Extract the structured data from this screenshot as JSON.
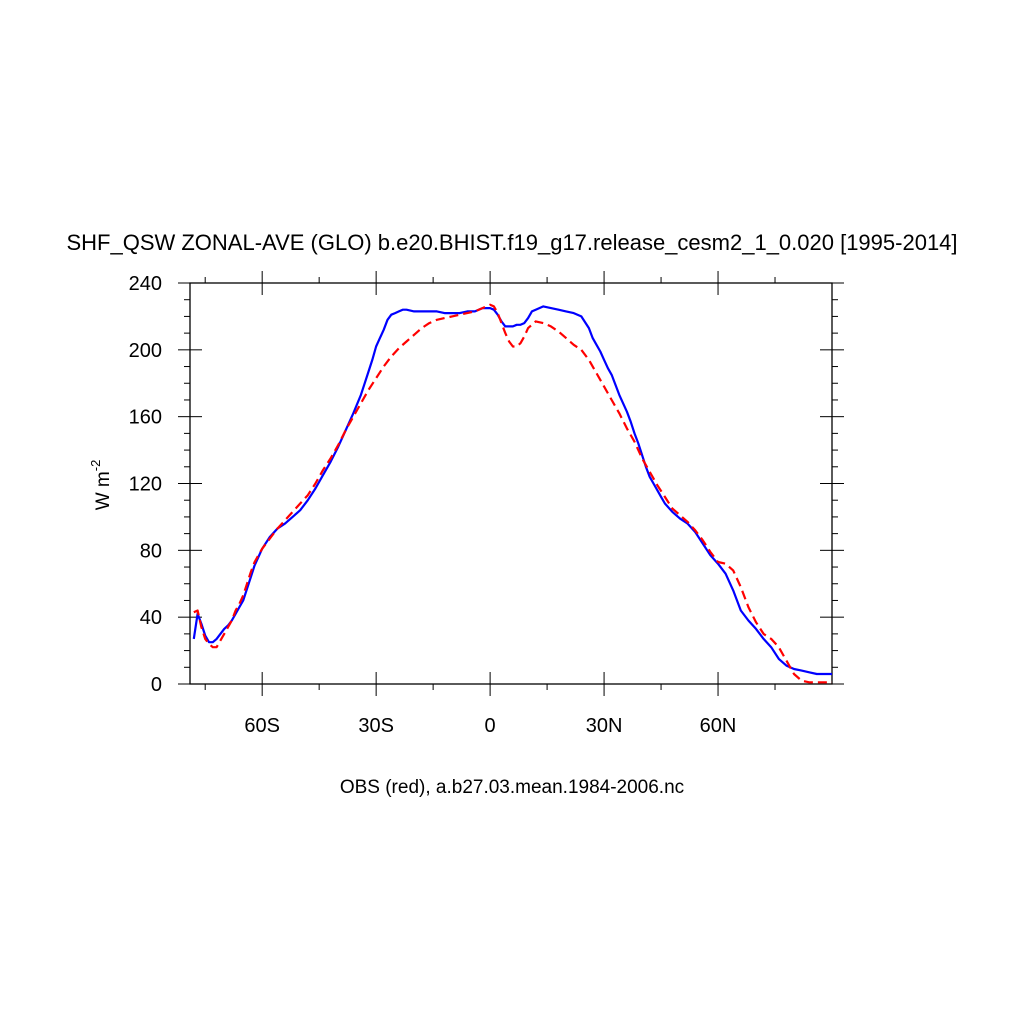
{
  "chart_data": {
    "type": "line",
    "title": "SHF_QSW ZONAL-AVE (GLO) b.e20.BHIST.f19_g17.release_cesm2_1_0.020 [1995-2014]",
    "ylabel_main": "W m",
    "ylabel_sup": "-2",
    "xlabel": "",
    "caption": "OBS (red), a.b27.03.mean.1984-2006.nc",
    "xlim": [
      -79,
      90
    ],
    "ylim": [
      0,
      240
    ],
    "x_ticks": [
      {
        "value": -60,
        "label": "60S"
      },
      {
        "value": -30,
        "label": "30S"
      },
      {
        "value": 0,
        "label": "0"
      },
      {
        "value": 30,
        "label": "30N"
      },
      {
        "value": 60,
        "label": "60N"
      }
    ],
    "y_ticks": [
      {
        "value": 0,
        "label": "0"
      },
      {
        "value": 40,
        "label": "40"
      },
      {
        "value": 80,
        "label": "80"
      },
      {
        "value": 120,
        "label": "120"
      },
      {
        "value": 160,
        "label": "160"
      },
      {
        "value": 200,
        "label": "200"
      },
      {
        "value": 240,
        "label": "240"
      }
    ],
    "grid": false,
    "series": [
      {
        "color": "#0000ff",
        "dash": "solid",
        "x": [
          -78,
          -77,
          -76,
          -75,
          -74,
          -73,
          -72,
          -71,
          -70,
          -69,
          -68,
          -67,
          -66,
          -65,
          -64,
          -63,
          -62,
          -61,
          -60,
          -58,
          -56,
          -54,
          -52,
          -50,
          -48,
          -46,
          -44,
          -42,
          -40,
          -38,
          -36,
          -34,
          -33,
          -32,
          -31,
          -30,
          -29,
          -28,
          -27,
          -26,
          -25,
          -24,
          -23,
          -22,
          -20,
          -18,
          -16,
          -14,
          -12,
          -10,
          -8,
          -6,
          -4,
          -2,
          0,
          1,
          2,
          3,
          4,
          5,
          6,
          7,
          8,
          9,
          10,
          11,
          12,
          14,
          16,
          18,
          20,
          22,
          24,
          26,
          27,
          28,
          29,
          30,
          31,
          32,
          33,
          34,
          35,
          36,
          37,
          38,
          39,
          40,
          41,
          42,
          43,
          44,
          45,
          46,
          48,
          50,
          52,
          54,
          56,
          58,
          60,
          62,
          64,
          66,
          68,
          70,
          72,
          74,
          76,
          78,
          80,
          82,
          84,
          86,
          88,
          90
        ],
        "y": [
          27,
          42,
          36,
          29,
          25,
          25,
          27,
          30,
          33,
          35,
          38,
          42,
          46,
          50,
          57,
          64,
          71,
          76,
          81,
          88,
          93,
          96,
          100,
          104,
          110,
          117,
          125,
          133,
          142,
          152,
          162,
          173,
          180,
          187,
          194,
          202,
          207,
          212,
          218,
          221,
          222,
          223,
          224,
          224,
          223,
          223,
          223,
          223,
          222,
          222,
          222,
          223,
          223,
          225,
          225,
          224,
          221,
          217,
          214,
          214,
          214,
          215,
          215,
          216,
          219,
          223,
          224,
          226,
          225,
          224,
          223,
          222,
          220,
          213,
          207,
          203,
          199,
          194,
          189,
          185,
          179,
          173,
          168,
          163,
          157,
          150,
          144,
          137,
          130,
          124,
          120,
          116,
          112,
          108,
          103,
          99,
          96,
          91,
          84,
          77,
          72,
          66,
          56,
          44,
          38,
          33,
          27,
          22,
          15,
          11,
          9,
          8,
          7,
          6,
          6,
          6
        ]
      },
      {
        "color": "#ff0000",
        "dash": "dashed",
        "x": [
          -78,
          -77,
          -76,
          -75,
          -74,
          -73,
          -72,
          -71,
          -70,
          -69,
          -68,
          -67,
          -66,
          -65,
          -64,
          -63,
          -62,
          -61,
          -60,
          -58,
          -56,
          -54,
          -52,
          -50,
          -48,
          -46,
          -44,
          -42,
          -40,
          -38,
          -36,
          -34,
          -32,
          -30,
          -28,
          -26,
          -24,
          -22,
          -20,
          -18,
          -16,
          -14,
          -12,
          -10,
          -8,
          -6,
          -4,
          -2,
          0,
          1,
          2,
          3,
          4,
          5,
          6,
          7,
          8,
          9,
          10,
          11,
          12,
          14,
          16,
          18,
          20,
          22,
          24,
          26,
          28,
          30,
          32,
          34,
          36,
          38,
          40,
          42,
          44,
          46,
          48,
          50,
          52,
          54,
          56,
          58,
          60,
          62,
          64,
          66,
          68,
          70,
          72,
          74,
          76,
          78,
          80,
          82,
          84,
          86,
          88,
          90
        ],
        "y": [
          43,
          44,
          34,
          27,
          24,
          22,
          22,
          26,
          30,
          34,
          38,
          44,
          48,
          53,
          60,
          67,
          73,
          77,
          81,
          87,
          93,
          98,
          103,
          108,
          113,
          120,
          128,
          135,
          143,
          152,
          160,
          168,
          176,
          183,
          190,
          196,
          201,
          205,
          209,
          213,
          216,
          218,
          219,
          220,
          221,
          222,
          223,
          225,
          227,
          226,
          222,
          216,
          210,
          205,
          202,
          202,
          204,
          208,
          213,
          215,
          217,
          216,
          214,
          211,
          207,
          203,
          200,
          194,
          186,
          178,
          170,
          162,
          153,
          145,
          135,
          127,
          119,
          112,
          105,
          101,
          97,
          92,
          86,
          79,
          73,
          72,
          68,
          58,
          46,
          37,
          30,
          27,
          22,
          14,
          6,
          2,
          1,
          1,
          1,
          1
        ]
      }
    ]
  }
}
